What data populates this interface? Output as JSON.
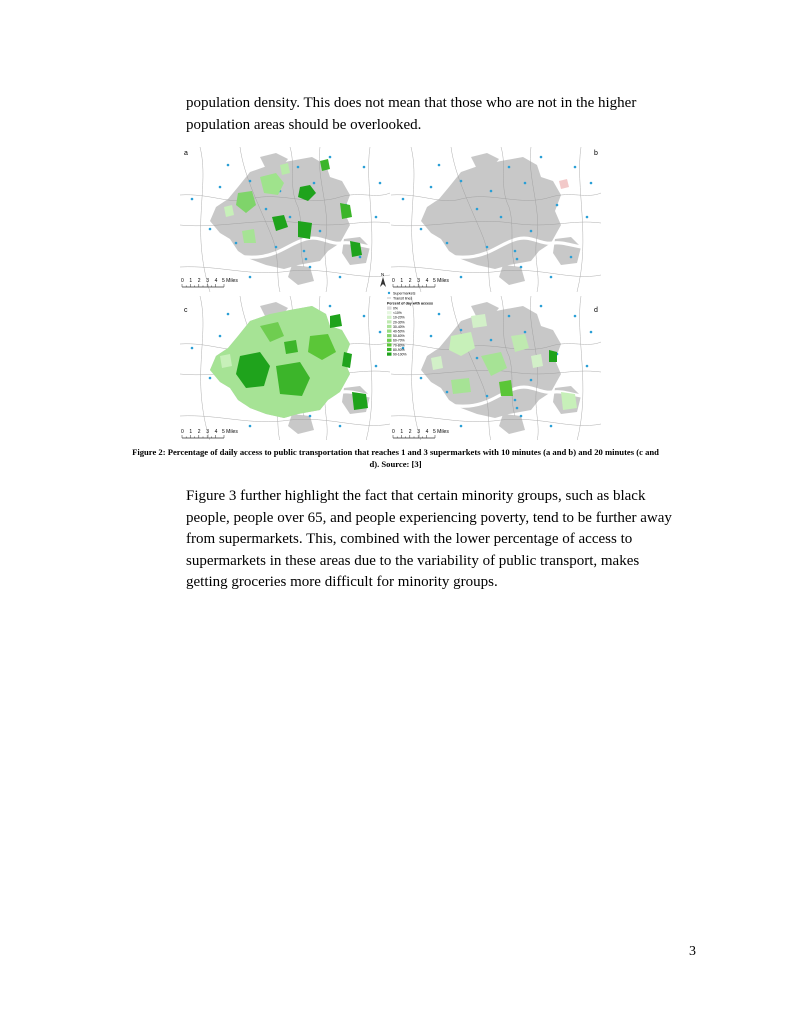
{
  "paragraph_top": {
    "lines": [
      "population density. This does not mean that those who are not in the higher",
      "population areas should be overlooked."
    ]
  },
  "figure": {
    "panels": [
      {
        "label": "a"
      },
      {
        "label": "b"
      },
      {
        "label": "c"
      },
      {
        "label": "d"
      }
    ],
    "scale_bar": {
      "ticks": [
        "0",
        "1",
        "2",
        "3",
        "4",
        "5 Miles"
      ]
    },
    "north_label": "N",
    "legend": {
      "supermarkets": "Supermarkets",
      "transit_lines": "Transit lines",
      "title": "Percent of day with access",
      "classes": [
        "0%",
        "<10%",
        "10-20%",
        "20-30%",
        "30-40%",
        "40-50%",
        "50-60%",
        "60-70%",
        "70-80%",
        "80-90%",
        "90-100%"
      ],
      "colors": [
        "#d9d9d9",
        "#e6f7e0",
        "#d2f0c8",
        "#bfe9b0",
        "#abe298",
        "#97db80",
        "#83d468",
        "#6fcd50",
        "#5bc638",
        "#3cb52a",
        "#1fa31c"
      ],
      "point_color": "#2a9fd6"
    }
  },
  "caption": {
    "lines": [
      "Figure 2: Percentage of daily access to public transportation that reaches 1 and 3 supermarkets with 10 minutes (a and b) and 20 minutes (c and",
      "d). Source: [3]"
    ]
  },
  "paragraph_bottom": {
    "lines": [
      "Figure 3 further highlight the fact that certain minority groups, such as black",
      "people, people over 65, and people experiencing poverty, tend to be further away",
      "from supermarkets. This, combined with the lower percentage of access to",
      "supermarkets in these areas due to the variability of public transport, makes",
      "getting groceries more difficult for minority groups."
    ]
  },
  "page_number": "3"
}
